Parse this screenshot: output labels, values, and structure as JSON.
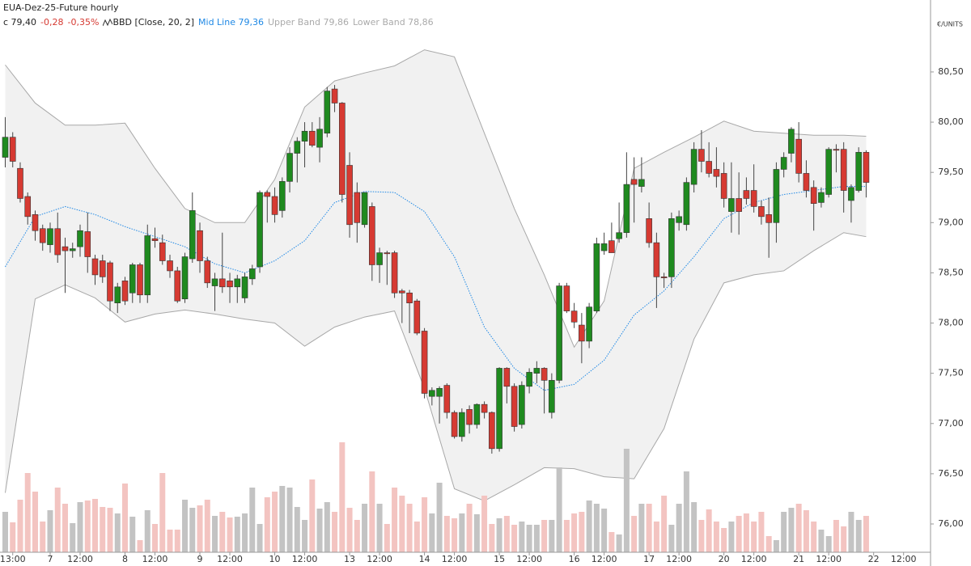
{
  "chart_data": {
    "type": "candlestick",
    "title": "EUA-Dez-25-Future hourly",
    "last_close": "c 79,40",
    "change": "-0,28",
    "change_pct": "-0,35%",
    "indicator": "BBD [Close, 20, 2]",
    "mid_line": "Mid Line 79,36",
    "upper_band": "Upper Band 79,86",
    "lower_band": "Lower Band 78,86",
    "unit": "€/UNITS",
    "x": [
      0,
      1,
      2,
      3,
      4,
      5,
      6,
      7,
      8,
      9,
      10,
      11,
      12,
      13,
      14,
      15,
      16,
      17,
      18,
      19,
      20,
      21,
      22,
      23,
      24,
      25,
      26,
      27,
      28,
      29,
      30,
      31,
      32,
      33,
      34,
      35,
      36,
      37,
      38,
      39,
      40,
      41,
      42,
      43,
      44,
      45,
      46,
      47,
      48,
      49,
      50,
      51,
      52,
      53,
      54,
      55,
      56,
      57,
      58,
      59,
      60,
      61,
      62,
      63,
      64,
      65,
      66,
      67,
      68,
      69,
      70,
      71,
      72,
      73,
      74,
      75,
      76,
      77,
      78,
      79,
      80,
      81,
      82,
      83,
      84,
      85,
      86,
      87,
      88,
      89,
      90,
      91,
      92,
      93,
      94,
      95,
      96,
      97,
      98,
      99,
      100,
      101,
      102,
      103,
      104,
      105,
      106,
      107,
      108,
      109,
      110,
      111,
      112,
      113,
      114,
      115
    ],
    "open": [
      79.65,
      79.85,
      79.54,
      79.26,
      79.08,
      78.94,
      78.78,
      78.94,
      78.76,
      78.72,
      78.76,
      78.91,
      78.64,
      78.62,
      78.6,
      78.2,
      78.42,
      78.3,
      78.58,
      78.28,
      78.84,
      78.8,
      78.62,
      78.52,
      78.24,
      78.64,
      78.92,
      78.62,
      78.37,
      78.44,
      78.42,
      78.36,
      78.25,
      78.44,
      78.56,
      79.3,
      79.26,
      79.12,
      79.41,
      79.69,
      79.81,
      79.91,
      79.75,
      79.89,
      80.33,
      80.19,
      79.57,
      79.3,
      78.98,
      79.16,
      78.58,
      78.7,
      78.7,
      78.32,
      78.3,
      78.22,
      77.92,
      77.27,
      77.27,
      77.38,
      77.11,
      76.87,
      77.14,
      76.99,
      77.19,
      77.11,
      76.75,
      77.55,
      77.37,
      76.99,
      77.37,
      77.5,
      77.55,
      77.11,
      77.43,
      78.37,
      78.12,
      77.98,
      77.82,
      78.12,
      78.72,
      78.82,
      78.84,
      78.9,
      79.43,
      79.36,
      79.04,
      78.8,
      78.46,
      78.46,
      79.0,
      78.98,
      79.38,
      79.73,
      79.61,
      79.53,
      79.49,
      79.11,
      79.24,
      79.32,
      79.32,
      79.16,
      79.08,
      79.0,
      79.53,
      79.69,
      79.83,
      79.49,
      79.35,
      79.2,
      79.28,
      79.73,
      79.73,
      79.22,
      79.32,
      79.7
    ],
    "high": [
      80.05,
      79.9,
      79.6,
      79.3,
      79.12,
      78.98,
      79.0,
      79.1,
      78.85,
      78.8,
      78.98,
      79.1,
      78.68,
      78.68,
      78.62,
      78.4,
      78.46,
      78.6,
      78.6,
      78.98,
      78.95,
      78.88,
      78.68,
      78.56,
      78.7,
      79.3,
      79.0,
      78.66,
      78.5,
      78.9,
      78.5,
      78.48,
      78.5,
      78.58,
      79.32,
      79.32,
      79.35,
      79.45,
      79.75,
      79.85,
      80.0,
      80.0,
      80.05,
      80.35,
      80.37,
      80.2,
      79.7,
      79.4,
      79.3,
      79.2,
      78.75,
      78.72,
      78.72,
      78.34,
      78.33,
      78.24,
      77.95,
      77.36,
      77.37,
      77.4,
      77.13,
      77.15,
      77.18,
      77.2,
      77.22,
      77.12,
      77.56,
      77.56,
      77.4,
      77.42,
      77.55,
      77.62,
      77.56,
      77.5,
      78.4,
      78.4,
      78.2,
      78.1,
      78.2,
      78.85,
      78.9,
      79.0,
      79.2,
      79.7,
      79.65,
      79.65,
      79.2,
      78.9,
      78.5,
      79.1,
      79.12,
      79.45,
      79.8,
      79.92,
      79.8,
      79.75,
      79.6,
      79.6,
      79.5,
      79.45,
      79.58,
      79.22,
      79.25,
      79.6,
      79.7,
      79.95,
      80.0,
      79.62,
      79.42,
      79.35,
      79.75,
      79.78,
      79.8,
      79.38,
      79.75,
      79.72
    ],
    "low": [
      79.55,
      79.55,
      79.2,
      78.98,
      78.82,
      78.72,
      78.7,
      78.6,
      78.3,
      78.65,
      78.66,
      78.5,
      78.38,
      78.4,
      78.12,
      78.1,
      78.18,
      78.2,
      78.2,
      78.2,
      78.75,
      78.58,
      78.45,
      78.2,
      78.2,
      78.6,
      78.5,
      78.35,
      78.12,
      78.3,
      78.2,
      78.2,
      78.2,
      78.38,
      78.5,
      79.0,
      79.0,
      79.05,
      79.3,
      79.4,
      79.55,
      79.75,
      79.6,
      79.85,
      80.1,
      79.2,
      78.85,
      78.8,
      78.95,
      78.42,
      78.4,
      78.38,
      78.25,
      78.0,
      77.9,
      77.88,
      77.25,
      77.18,
      77.0,
      77.05,
      76.85,
      76.82,
      76.9,
      76.95,
      77.05,
      76.7,
      76.72,
      77.2,
      76.92,
      76.95,
      77.3,
      77.4,
      77.1,
      77.05,
      77.4,
      78.1,
      77.95,
      77.6,
      77.75,
      78.1,
      78.68,
      78.7,
      78.8,
      78.85,
      79.0,
      79.3,
      78.75,
      78.15,
      78.35,
      78.35,
      78.92,
      78.92,
      79.3,
      79.5,
      79.45,
      79.35,
      79.15,
      78.9,
      78.88,
      79.18,
      79.1,
      78.98,
      78.65,
      78.8,
      79.45,
      79.6,
      79.4,
      79.25,
      78.92,
      79.15,
      79.25,
      79.5,
      79.1,
      79.0,
      79.3,
      79.25
    ],
    "close": [
      79.85,
      79.61,
      79.24,
      79.06,
      78.92,
      78.8,
      78.94,
      78.68,
      78.72,
      78.74,
      78.92,
      78.66,
      78.48,
      78.46,
      78.22,
      78.36,
      78.22,
      78.58,
      78.28,
      78.87,
      78.82,
      78.62,
      78.52,
      78.22,
      78.66,
      79.12,
      78.62,
      78.4,
      78.44,
      78.36,
      78.36,
      78.44,
      78.46,
      78.54,
      79.3,
      79.26,
      79.08,
      79.41,
      79.69,
      79.81,
      79.91,
      79.77,
      79.93,
      80.31,
      80.19,
      79.28,
      78.98,
      79.0,
      79.3,
      78.58,
      78.7,
      78.69,
      78.3,
      78.3,
      78.2,
      77.9,
      77.3,
      77.33,
      77.35,
      77.11,
      76.87,
      77.11,
      76.99,
      77.19,
      77.11,
      76.75,
      77.55,
      77.37,
      76.97,
      77.38,
      77.51,
      77.55,
      77.43,
      77.43,
      78.37,
      78.12,
      78.01,
      77.82,
      78.16,
      78.79,
      78.79,
      78.7,
      78.9,
      79.38,
      79.38,
      79.43,
      78.8,
      78.46,
      78.45,
      79.04,
      79.06,
      79.4,
      79.73,
      79.61,
      79.49,
      79.46,
      79.24,
      79.24,
      79.11,
      79.24,
      79.16,
      79.06,
      79.0,
      79.53,
      79.65,
      79.93,
      79.49,
      79.32,
      79.19,
      79.3,
      79.73,
      79.72,
      79.32,
      79.35,
      79.7,
      79.4
    ],
    "volume": [
      50,
      37,
      65,
      98,
      75,
      38,
      52,
      80,
      60,
      36,
      62,
      64,
      66,
      56,
      55,
      48,
      85,
      44,
      15,
      52,
      35,
      98,
      28,
      28,
      65,
      55,
      58,
      65,
      45,
      50,
      43,
      44,
      48,
      80,
      35,
      68,
      75,
      82,
      80,
      56,
      40,
      90,
      54,
      62,
      50,
      136,
      55,
      40,
      60,
      100,
      60,
      35,
      80,
      70,
      60,
      38,
      68,
      48,
      86,
      45,
      42,
      48,
      60,
      47,
      70,
      35,
      42,
      45,
      34,
      38,
      34,
      34,
      40,
      40,
      105,
      40,
      48,
      50,
      64,
      60,
      54,
      25,
      22,
      128,
      45,
      60,
      60,
      38,
      70,
      34,
      60,
      100,
      62,
      40,
      53,
      38,
      30,
      38,
      45,
      48,
      38,
      50,
      20,
      15,
      50,
      55,
      60,
      52,
      38,
      28,
      20,
      40,
      32,
      50,
      40,
      45
    ],
    "bands": {
      "x": [
        0,
        4,
        8,
        12,
        16,
        20,
        24,
        28,
        32,
        36,
        40,
        44,
        48,
        52,
        56,
        60,
        64,
        68,
        72,
        76,
        80,
        84,
        88,
        92,
        96,
        100,
        104,
        108,
        112,
        115
      ],
      "upper": [
        80.57,
        80.19,
        79.97,
        79.97,
        79.99,
        79.54,
        79.14,
        79.0,
        79.0,
        79.43,
        80.15,
        80.41,
        80.49,
        80.56,
        80.72,
        80.65,
        79.89,
        79.14,
        78.48,
        77.76,
        78.22,
        79.54,
        79.7,
        79.85,
        80.01,
        79.91,
        79.89,
        79.87,
        79.87,
        79.86
      ],
      "mid": [
        78.56,
        79.06,
        79.16,
        79.08,
        78.96,
        78.86,
        78.76,
        78.59,
        78.5,
        78.62,
        78.82,
        79.2,
        79.31,
        79.3,
        79.11,
        78.66,
        77.96,
        77.55,
        77.33,
        77.39,
        77.63,
        78.08,
        78.32,
        78.66,
        79.04,
        79.2,
        79.28,
        79.32,
        79.36,
        79.36
      ],
      "lower": [
        76.31,
        78.24,
        78.38,
        78.25,
        78.01,
        78.09,
        78.13,
        78.09,
        78.04,
        78.0,
        77.77,
        77.96,
        78.06,
        78.12,
        77.35,
        76.35,
        76.23,
        76.39,
        76.56,
        76.55,
        76.47,
        76.45,
        76.95,
        77.84,
        78.4,
        78.48,
        78.52,
        78.72,
        78.9,
        78.86
      ]
    },
    "colors": {
      "up": "#1f8a1f",
      "down": "#d63a32",
      "volume_up": "#c3c3c3",
      "volume_down": "#f3c4c1",
      "band_fill": "#f1f1f1",
      "band_line": "#a8a8a8",
      "mid_line": "#1e88e5"
    },
    "xlim": [
      -0.7,
      123.6
    ],
    "ylim": [
      75.662,
      80.894
    ],
    "yticks": [
      {
        "value": 76,
        "label": "76,00"
      },
      {
        "value": 76.5,
        "label": "76,50"
      },
      {
        "value": 77,
        "label": "77,00"
      },
      {
        "value": 77.5,
        "label": "77,50"
      },
      {
        "value": 78,
        "label": "78,00"
      },
      {
        "value": 78.5,
        "label": "78,50"
      },
      {
        "value": 79,
        "label": "79,00"
      },
      {
        "value": 79.5,
        "label": "79,50"
      },
      {
        "value": 80,
        "label": "80,00"
      },
      {
        "value": 80.5,
        "label": "80,50"
      }
    ],
    "xticks": [
      {
        "value": 1,
        "label": "13:00"
      },
      {
        "value": 6,
        "label": "7"
      },
      {
        "value": 10,
        "label": "12:00"
      },
      {
        "value": 16,
        "label": "8"
      },
      {
        "value": 20,
        "label": "12:00"
      },
      {
        "value": 26,
        "label": "9"
      },
      {
        "value": 30,
        "label": "12:00"
      },
      {
        "value": 36,
        "label": "10"
      },
      {
        "value": 40,
        "label": "12:00"
      },
      {
        "value": 46,
        "label": "13"
      },
      {
        "value": 50,
        "label": "12:00"
      },
      {
        "value": 56,
        "label": "14"
      },
      {
        "value": 60,
        "label": "12:00"
      },
      {
        "value": 66,
        "label": "15"
      },
      {
        "value": 70,
        "label": "12:00"
      },
      {
        "value": 76,
        "label": "16"
      },
      {
        "value": 80,
        "label": "12:00"
      },
      {
        "value": 86,
        "label": "17"
      },
      {
        "value": 90,
        "label": "12:00"
      },
      {
        "value": 96,
        "label": "20"
      },
      {
        "value": 100,
        "label": "12:00"
      },
      {
        "value": 106,
        "label": "21"
      },
      {
        "value": 110,
        "label": "12:00"
      },
      {
        "value": 116,
        "label": "22"
      },
      {
        "value": 120,
        "label": "12:00"
      }
    ]
  }
}
